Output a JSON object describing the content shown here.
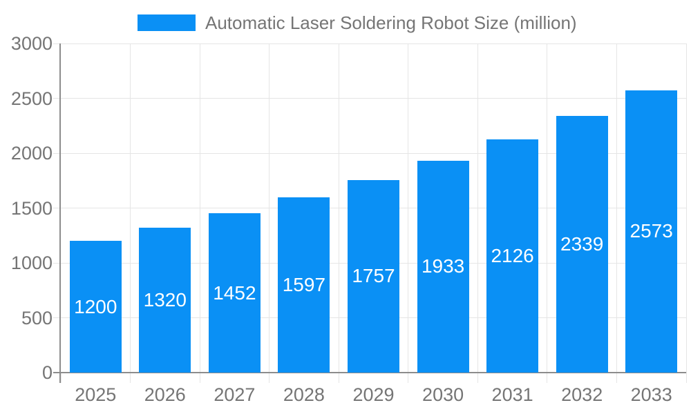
{
  "legend": {
    "label": "Automatic Laser Soldering Robot Size (million)"
  },
  "colors": {
    "bar": "#0a90f5",
    "bar_label": "#ffffff",
    "grid": "#e5e5e5",
    "axis": "#8c8c8c",
    "text": "#757575",
    "background": "#ffffff"
  },
  "chart_data": {
    "type": "bar",
    "title": "Automatic Laser Soldering Robot Size (million)",
    "categories": [
      "2025",
      "2026",
      "2027",
      "2028",
      "2029",
      "2030",
      "2031",
      "2032",
      "2033"
    ],
    "values": [
      1200,
      1320,
      1452,
      1597,
      1757,
      1933,
      2126,
      2339,
      2573
    ],
    "xlabel": "",
    "ylabel": "",
    "ylim": [
      0,
      3000
    ],
    "yticks": [
      0,
      500,
      1000,
      1500,
      2000,
      2500,
      3000
    ],
    "grid": true,
    "legend_position": "top",
    "value_labels": "inside-middle",
    "bar_label_color": "white"
  }
}
